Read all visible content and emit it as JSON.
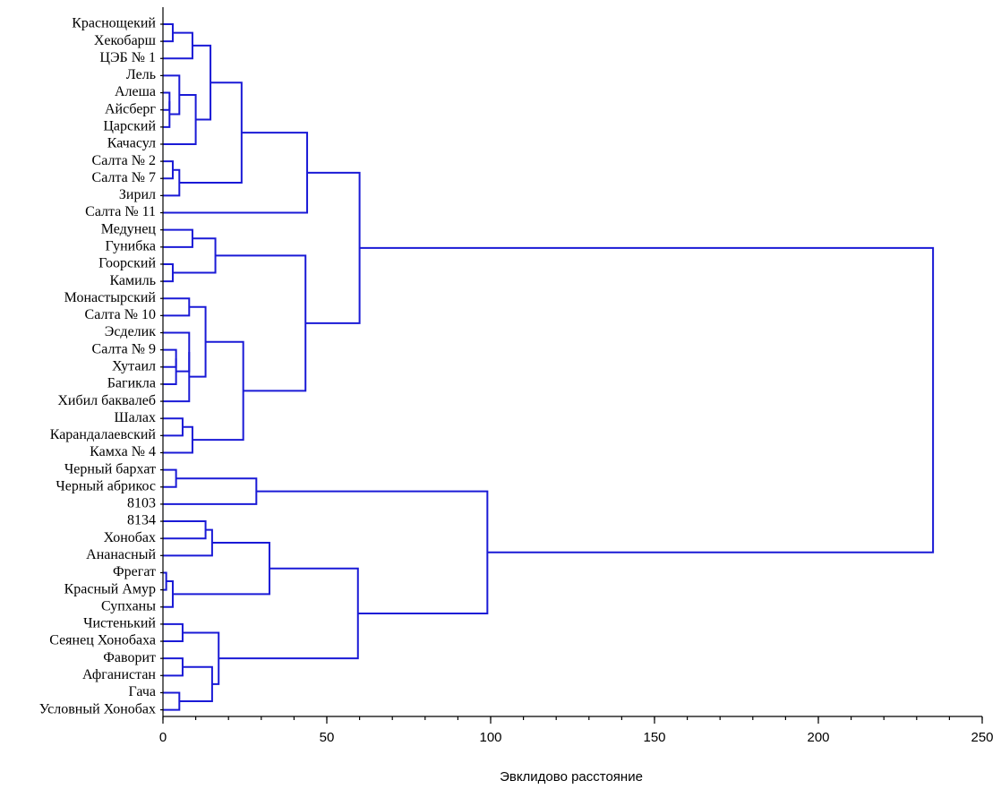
{
  "chart_data": {
    "type": "dendrogram",
    "orientation": "horizontal",
    "xlabel": "Эвклидово расстояние",
    "xlim": [
      0,
      250
    ],
    "x_ticks": [
      0,
      50,
      100,
      150,
      200,
      250
    ],
    "x_tick_labels": [
      "0",
      "50",
      "100",
      "150",
      "200",
      "250"
    ],
    "link_color": "#1a1ad6",
    "leaves": [
      "Краснощекий",
      "Хекобарш",
      "ЦЭБ № 1",
      "Лель",
      "Алеша",
      "Айсберг",
      "Царский",
      "Качасул",
      "Салта № 2",
      "Салта № 7",
      "Зирил",
      "Салта № 11",
      "Медунец",
      "Гунибка",
      "Гоорский",
      "Камиль",
      "Монастырский",
      "Салта № 10",
      "Эсделик",
      "Салта № 9",
      "Хутаил",
      "Багикла",
      "Хибил баквалеб",
      "Шалах",
      "Карандалаевский",
      "Камха № 4",
      "Черный бархат",
      "Черный абрикос",
      "8103",
      "8134",
      "Хонобах",
      "Ананасный",
      "Фрегат",
      "Красный Амур",
      "Супханы",
      "Чистенький",
      "Сеянец Хонобаха",
      "Фаворит",
      "Афганистан",
      "Гача",
      "Условный Хонобах"
    ],
    "merges": [
      {
        "a": "L0",
        "b": "L1",
        "distance": 3
      },
      {
        "a": "M0",
        "b": "L2",
        "distance": 9
      },
      {
        "a": "L4",
        "b": "L5",
        "distance": 2
      },
      {
        "a": "M2",
        "b": "L6",
        "distance": 2
      },
      {
        "a": "L3",
        "b": "M3",
        "distance": 5
      },
      {
        "a": "M4",
        "b": "L7",
        "distance": 10
      },
      {
        "a": "M1",
        "b": "M5",
        "distance": 14.5
      },
      {
        "a": "L8",
        "b": "L9",
        "distance": 3
      },
      {
        "a": "M7",
        "b": "L10",
        "distance": 5
      },
      {
        "a": "M6",
        "b": "M8",
        "distance": 24
      },
      {
        "a": "M9",
        "b": "L11",
        "distance": 44
      },
      {
        "a": "L12",
        "b": "L13",
        "distance": 9
      },
      {
        "a": "L14",
        "b": "L15",
        "distance": 3
      },
      {
        "a": "M11",
        "b": "M12",
        "distance": 16
      },
      {
        "a": "L16",
        "b": "L17",
        "distance": 8
      },
      {
        "a": "L19",
        "b": "L20",
        "distance": 4
      },
      {
        "a": "M15",
        "b": "L21",
        "distance": 4
      },
      {
        "a": "L18",
        "b": "M16",
        "distance": 8
      },
      {
        "a": "M17",
        "b": "L22",
        "distance": 8
      },
      {
        "a": "M14",
        "b": "M18",
        "distance": 13
      },
      {
        "a": "L23",
        "b": "L24",
        "distance": 6
      },
      {
        "a": "M20",
        "b": "L25",
        "distance": 9
      },
      {
        "a": "M19",
        "b": "M21",
        "distance": 24.5
      },
      {
        "a": "M13",
        "b": "M22",
        "distance": 43.5
      },
      {
        "a": "M10",
        "b": "M23",
        "distance": 60
      },
      {
        "a": "L26",
        "b": "L27",
        "distance": 4
      },
      {
        "a": "M25",
        "b": "L28",
        "distance": 28.5
      },
      {
        "a": "L29",
        "b": "L30",
        "distance": 13
      },
      {
        "a": "M27",
        "b": "L31",
        "distance": 15
      },
      {
        "a": "L32",
        "b": "L33",
        "distance": 1
      },
      {
        "a": "M29",
        "b": "L34",
        "distance": 3
      },
      {
        "a": "M28",
        "b": "M30",
        "distance": 32.5
      },
      {
        "a": "L35",
        "b": "L36",
        "distance": 6
      },
      {
        "a": "L37",
        "b": "L38",
        "distance": 6
      },
      {
        "a": "L39",
        "b": "L40",
        "distance": 5
      },
      {
        "a": "M33",
        "b": "M34",
        "distance": 15
      },
      {
        "a": "M32",
        "b": "M35",
        "distance": 17
      },
      {
        "a": "M31",
        "b": "M36",
        "distance": 59.5
      },
      {
        "a": "M26",
        "b": "M37",
        "distance": 99
      },
      {
        "a": "M24",
        "b": "M38",
        "distance": 235
      }
    ]
  }
}
